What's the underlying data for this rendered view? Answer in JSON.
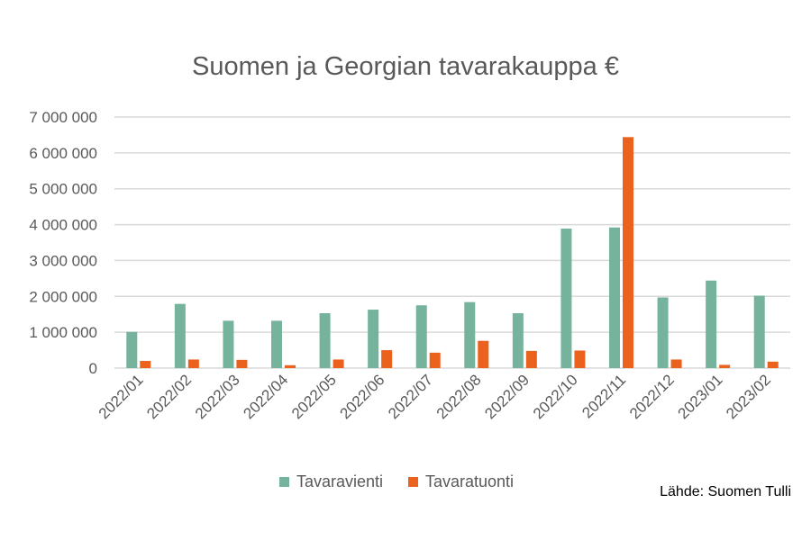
{
  "chart_data": {
    "type": "bar",
    "title": "Suomen ja Georgian tavarakauppa €",
    "categories": [
      "2022/01",
      "2022/02",
      "2022/03",
      "2022/04",
      "2022/05",
      "2022/06",
      "2022/07",
      "2022/08",
      "2022/09",
      "2022/10",
      "2022/11",
      "2022/12",
      "2023/01",
      "2023/02"
    ],
    "series": [
      {
        "name": "Tavaravienti",
        "color": "#76B39D",
        "values": [
          1010000,
          1790000,
          1320000,
          1320000,
          1530000,
          1630000,
          1750000,
          1840000,
          1530000,
          3890000,
          3920000,
          1970000,
          2440000,
          2020000
        ]
      },
      {
        "name": "Tavaratuonti",
        "color": "#EB621F",
        "values": [
          200000,
          240000,
          230000,
          80000,
          240000,
          500000,
          430000,
          760000,
          480000,
          490000,
          6440000,
          240000,
          90000,
          180000
        ]
      }
    ],
    "ylim": [
      0,
      7000000
    ],
    "yticks": [
      0,
      1000000,
      2000000,
      3000000,
      4000000,
      5000000,
      6000000,
      7000000
    ],
    "ytick_labels": [
      "0",
      "1 000 000",
      "2 000 000",
      "3 000 000",
      "4 000 000",
      "5 000 000",
      "6 000 000",
      "7 000 000"
    ],
    "grid": true,
    "legend_position": "bottom",
    "source": "Lähde: Suomen Tulli"
  }
}
